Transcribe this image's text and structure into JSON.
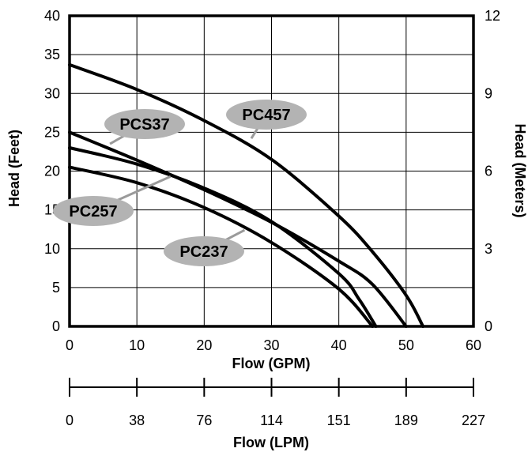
{
  "chart_data": {
    "type": "line",
    "xlabel": "Flow (GPM)",
    "ylabel": "Head (Feet)",
    "y2label": "Head (Meters)",
    "x2label": "Flow (LPM)",
    "xlim": [
      0,
      60
    ],
    "ylim": [
      0,
      40
    ],
    "y2lim": [
      0,
      12
    ],
    "x_ticks": [
      "0",
      "10",
      "20",
      "30",
      "40",
      "50",
      "60"
    ],
    "y_ticks": [
      "0",
      "5",
      "10",
      "15",
      "20",
      "25",
      "30",
      "35",
      "40"
    ],
    "y2_ticks": [
      "0",
      "3",
      "6",
      "9",
      "12"
    ],
    "lpm_ticks": [
      "0",
      "38",
      "76",
      "114",
      "151",
      "189",
      "227"
    ],
    "grid": true,
    "legend": "callout labels",
    "series": [
      {
        "name": "PC457",
        "x": [
          0,
          10,
          20,
          30,
          40,
          45,
          50,
          52.5
        ],
        "y": [
          33.7,
          30.5,
          26.5,
          21.5,
          14.2,
          9.6,
          4.0,
          0
        ]
      },
      {
        "name": "PCS37",
        "x": [
          0,
          10,
          20,
          30,
          40,
          45,
          50
        ],
        "y": [
          25,
          21.4,
          17.6,
          13.4,
          8.4,
          5.4,
          0
        ]
      },
      {
        "name": "PC257",
        "x": [
          0,
          10,
          20,
          30,
          40,
          43,
          45.5
        ],
        "y": [
          23,
          20.9,
          17.8,
          13.5,
          6.8,
          3.5,
          0
        ]
      },
      {
        "name": "PC237",
        "x": [
          0,
          10,
          20,
          30,
          40,
          45
        ],
        "y": [
          20.5,
          18.5,
          15.3,
          10.8,
          4.8,
          0
        ]
      }
    ]
  }
}
